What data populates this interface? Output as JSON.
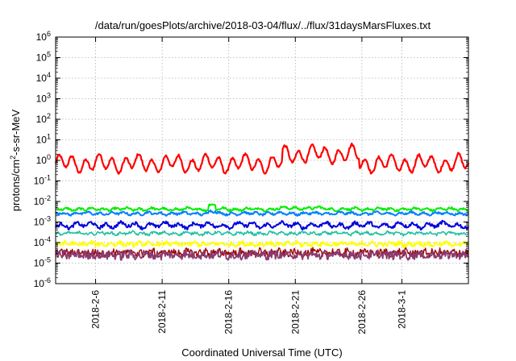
{
  "chart_data": {
    "type": "line",
    "title": "/data/run/goesPlots/archive/2018-03-04/flux/../flux/31daysMarsFluxes.txt",
    "xlabel": "Coordinated Universal Time (UTC)",
    "ylabel": "protons/cm2-s-sr-MeV",
    "ylabel_parts": {
      "before": "protons/cm",
      "sup": "2",
      "after": "-s-sr-MeV"
    },
    "yscale": "log",
    "ylim_exponents": [
      -6,
      6
    ],
    "ytick_base": "10",
    "ytick_exponents": [
      "-6",
      "-5",
      "-4",
      "-3",
      "-2",
      "-1",
      "0",
      "1",
      "2",
      "3",
      "4",
      "5",
      "6"
    ],
    "xlim_days": [
      0,
      31
    ],
    "xticks": [
      {
        "label": "2018-2-6",
        "day": 3
      },
      {
        "label": "2018-2-11",
        "day": 8
      },
      {
        "label": "2018-2-16",
        "day": 13
      },
      {
        "label": "2018-2-21",
        "day": 18
      },
      {
        "label": "2018-2-26",
        "day": 23
      },
      {
        "label": "2018-3-1",
        "day": 26
      }
    ],
    "grid": true,
    "series": [
      {
        "color": "#ff0000",
        "base": 0.7,
        "amp": 0.32,
        "period": 1.0,
        "noise": 0.06,
        "width": 2.2,
        "bumps": [
          [
            17.0,
            22.8,
            0.45
          ]
        ]
      },
      {
        "color": "#00ee00",
        "base": 0.0042,
        "amp": 0.05,
        "period": 0.9,
        "noise": 0.05,
        "width": 2.0,
        "bumps": [
          [
            11.5,
            12.0,
            0.2
          ],
          [
            16.5,
            20.5,
            0.05
          ]
        ]
      },
      {
        "color": "#0080ff",
        "base": 0.0026,
        "amp": 0.05,
        "period": 0.9,
        "noise": 0.05,
        "width": 2.0,
        "bumps": [
          [
            11.5,
            12.0,
            0.1
          ]
        ]
      },
      {
        "color": "#0000dd",
        "base": 0.0007,
        "amp": 0.1,
        "period": 1.1,
        "noise": 0.08,
        "width": 2.0,
        "bumps": []
      },
      {
        "color": "#20c0a0",
        "base": 0.00028,
        "amp": 0.05,
        "period": 0.8,
        "noise": 0.06,
        "width": 1.6,
        "bumps": []
      },
      {
        "color": "#ffff00",
        "base": 8.5e-05,
        "amp": 0.05,
        "period": 0.7,
        "noise": 0.1,
        "width": 1.8,
        "bumps": []
      },
      {
        "color": "#a00000",
        "base": 3.2e-05,
        "amp": 0.05,
        "period": 0.5,
        "noise": 0.18,
        "width": 1.4,
        "bumps": []
      },
      {
        "color": "#8b3a6f",
        "base": 2.5e-05,
        "amp": 0.05,
        "period": 0.5,
        "noise": 0.2,
        "width": 1.8,
        "bumps": []
      }
    ]
  }
}
